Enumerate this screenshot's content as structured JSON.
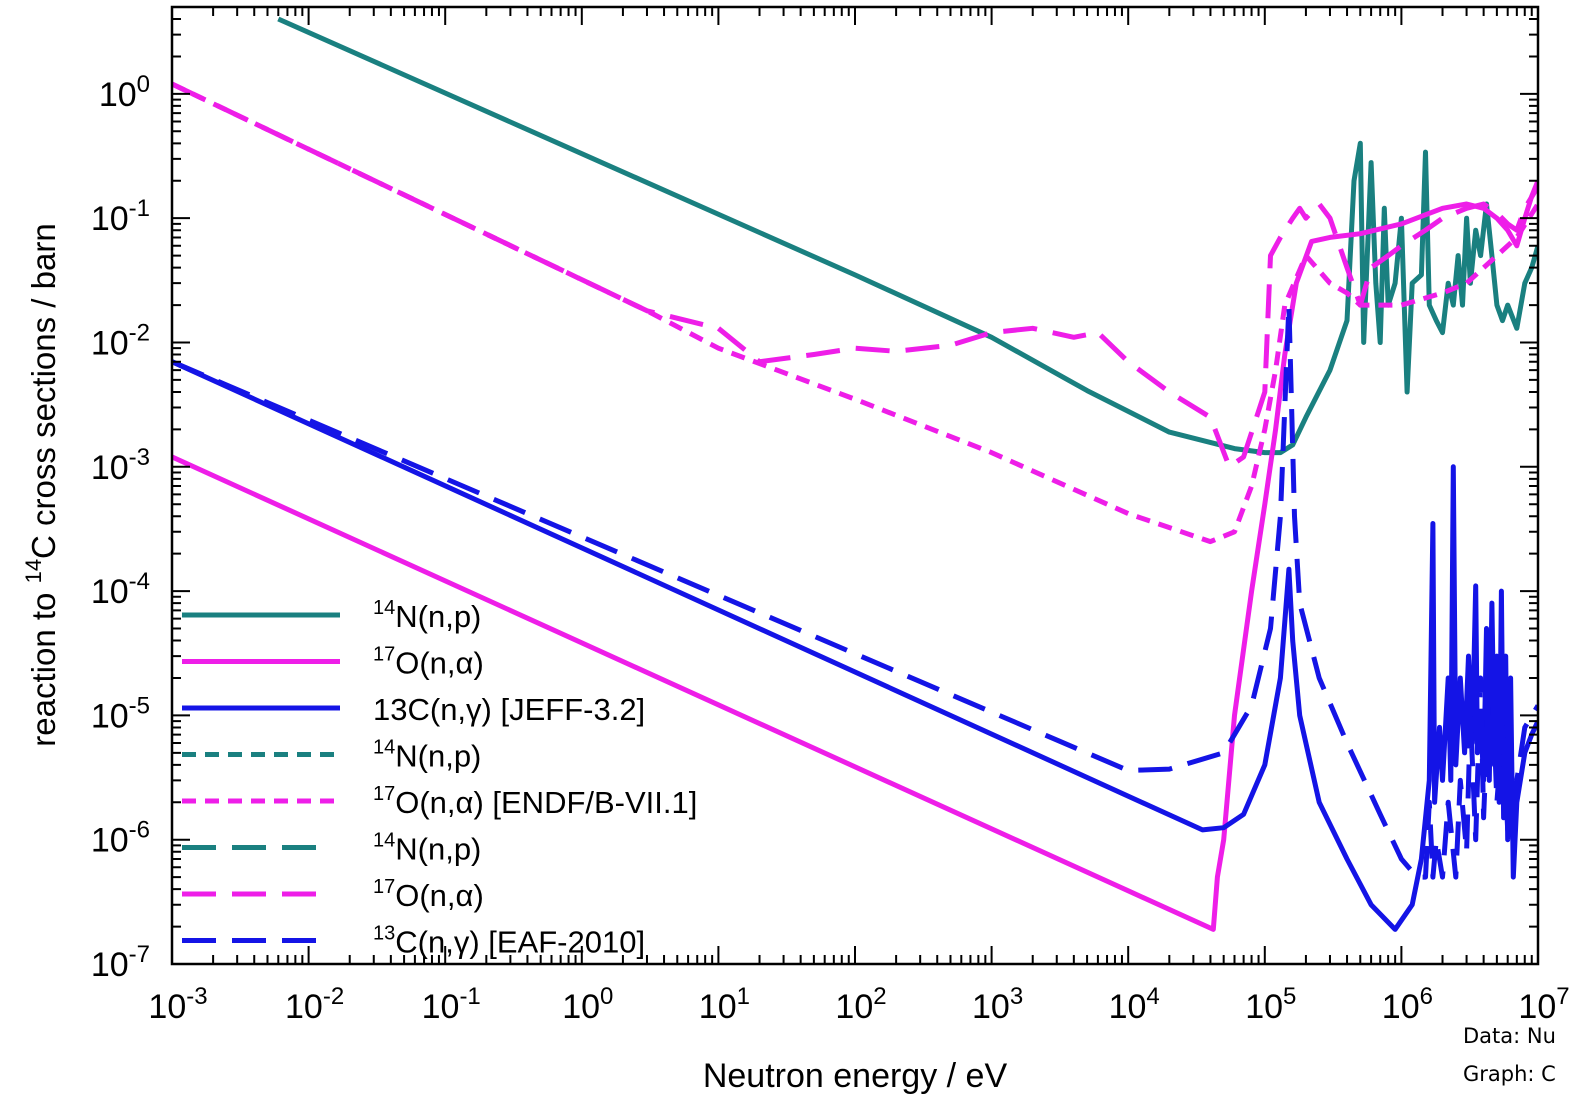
{
  "chart_data": {
    "type": "line",
    "xlabel": "Neutron energy / eV",
    "ylabel_parts": [
      "reaction to ",
      "14",
      "C cross sections / barn"
    ],
    "xscale": "log",
    "yscale": "log",
    "xlim": [
      0.001,
      10000000
    ],
    "ylim": [
      1e-07,
      5
    ],
    "x_ticks": [
      {
        "base": "10",
        "exp": "-3"
      },
      {
        "base": "10",
        "exp": "-2"
      },
      {
        "base": "10",
        "exp": "-1"
      },
      {
        "base": "10",
        "exp": "0"
      },
      {
        "base": "10",
        "exp": "1"
      },
      {
        "base": "10",
        "exp": "2"
      },
      {
        "base": "10",
        "exp": "3"
      },
      {
        "base": "10",
        "exp": "4"
      },
      {
        "base": "10",
        "exp": "5"
      },
      {
        "base": "10",
        "exp": "6"
      },
      {
        "base": "10",
        "exp": "7"
      }
    ],
    "y_ticks": [
      {
        "base": "10",
        "exp": "-7"
      },
      {
        "base": "10",
        "exp": "-6"
      },
      {
        "base": "10",
        "exp": "-5"
      },
      {
        "base": "10",
        "exp": "-4"
      },
      {
        "base": "10",
        "exp": "-3"
      },
      {
        "base": "10",
        "exp": "-2"
      },
      {
        "base": "10",
        "exp": "-1"
      },
      {
        "base": "10",
        "exp": "0"
      }
    ],
    "grid": false,
    "legend_position": "bottom-left",
    "series": [
      {
        "legend": [
          {
            "t": "14",
            "sup": true
          },
          {
            "t": "N(n,p)"
          }
        ],
        "color": "#1a8080",
        "dash": "solid",
        "points": [
          [
            0.006,
            4.0
          ],
          [
            100,
            0.035
          ],
          [
            1000,
            0.011
          ],
          [
            5000,
            0.0041
          ],
          [
            20000,
            0.0019
          ],
          [
            60000,
            0.0014
          ],
          [
            100000,
            0.0013
          ],
          [
            130000,
            0.0013
          ],
          [
            160000,
            0.0015
          ],
          [
            200000,
            0.0025
          ],
          [
            300000,
            0.006
          ],
          [
            400000,
            0.015
          ],
          [
            450000,
            0.2
          ],
          [
            500000,
            0.4
          ],
          [
            530000,
            0.01
          ],
          [
            600000,
            0.28
          ],
          [
            650000,
            0.03
          ],
          [
            700000,
            0.01
          ],
          [
            750000,
            0.12
          ],
          [
            800000,
            0.02
          ],
          [
            900000,
            0.03
          ],
          [
            1000000,
            0.1
          ],
          [
            1100000,
            0.004
          ],
          [
            1200000,
            0.03
          ],
          [
            1400000,
            0.035
          ],
          [
            1500000,
            0.34
          ],
          [
            1600000,
            0.02
          ],
          [
            1800000,
            0.015
          ],
          [
            2000000,
            0.012
          ],
          [
            2200000,
            0.03
          ],
          [
            2400000,
            0.02
          ],
          [
            2600000,
            0.05
          ],
          [
            2800000,
            0.02
          ],
          [
            3000000,
            0.1
          ],
          [
            3200000,
            0.03
          ],
          [
            3500000,
            0.08
          ],
          [
            3800000,
            0.05
          ],
          [
            4200000,
            0.13
          ],
          [
            4600000,
            0.05
          ],
          [
            5000000,
            0.02
          ],
          [
            5500000,
            0.015
          ],
          [
            6000000,
            0.02
          ],
          [
            7000000,
            0.013
          ],
          [
            8000000,
            0.03
          ],
          [
            9000000,
            0.04
          ],
          [
            10000000,
            0.06
          ]
        ]
      },
      {
        "legend": [
          {
            "t": "17",
            "sup": true
          },
          {
            "t": "O(n,α)"
          }
        ],
        "color": "#ee1ee8",
        "dash": "solid",
        "points": [
          [
            0.001,
            0.0012
          ],
          [
            42000,
            1.9e-07
          ],
          [
            45000,
            5e-07
          ],
          [
            50000,
            1e-06
          ],
          [
            60000,
            1e-05
          ],
          [
            80000,
            0.0001
          ],
          [
            100000,
            0.0005
          ],
          [
            120000,
            0.002
          ],
          [
            140000,
            0.008
          ],
          [
            170000,
            0.03
          ],
          [
            220000,
            0.065
          ],
          [
            300000,
            0.07
          ],
          [
            500000,
            0.075
          ],
          [
            1000000,
            0.09
          ],
          [
            2000000,
            0.12
          ],
          [
            3000000,
            0.13
          ],
          [
            4000000,
            0.12
          ],
          [
            5000000,
            0.1
          ],
          [
            6000000,
            0.08
          ],
          [
            7000000,
            0.06
          ],
          [
            8000000,
            0.1
          ],
          [
            9000000,
            0.15
          ],
          [
            10000000,
            0.2
          ]
        ]
      },
      {
        "legend": [
          {
            "t": "13C(n,"
          },
          {
            "t": "γ",
            "greek": true
          },
          {
            "t": ") [JEFF-3.2]"
          }
        ],
        "color": "#1414e6",
        "dash": "solid",
        "points": [
          [
            0.001,
            0.007
          ],
          [
            35000,
            1.2e-06
          ],
          [
            50000,
            1.25e-06
          ],
          [
            70000,
            1.6e-06
          ],
          [
            100000,
            4e-06
          ],
          [
            130000,
            2e-05
          ],
          [
            150000,
            0.00015
          ],
          [
            160000,
            4e-05
          ],
          [
            180000,
            1e-05
          ],
          [
            250000,
            2e-06
          ],
          [
            400000,
            7e-07
          ],
          [
            600000,
            3e-07
          ],
          [
            900000,
            1.9e-07
          ],
          [
            1200000,
            3e-07
          ],
          [
            1400000,
            7e-07
          ],
          [
            1600000,
            3e-06
          ],
          [
            1700000,
            0.00035
          ],
          [
            1750000,
            2e-06
          ],
          [
            1900000,
            8e-06
          ],
          [
            2000000,
            3e-06
          ],
          [
            2200000,
            2e-05
          ],
          [
            2300000,
            3e-06
          ],
          [
            2400000,
            0.001
          ],
          [
            2500000,
            4e-06
          ],
          [
            2700000,
            2e-05
          ],
          [
            2900000,
            5e-06
          ],
          [
            3100000,
            3e-05
          ],
          [
            3300000,
            6e-06
          ],
          [
            3500000,
            0.00011
          ],
          [
            3600000,
            5e-06
          ],
          [
            3800000,
            1e-05
          ],
          [
            4000000,
            3e-06
          ],
          [
            4200000,
            5e-05
          ],
          [
            4400000,
            3e-06
          ],
          [
            4600000,
            8e-05
          ],
          [
            4800000,
            4e-06
          ],
          [
            5000000,
            3e-05
          ],
          [
            5200000,
            2e-06
          ],
          [
            5400000,
            0.0001
          ],
          [
            5600000,
            1.5e-06
          ],
          [
            5800000,
            3e-05
          ],
          [
            6000000,
            1e-06
          ],
          [
            6300000,
            2e-05
          ],
          [
            6600000,
            5e-07
          ],
          [
            7000000,
            2e-06
          ],
          [
            8000000,
            5e-06
          ],
          [
            9000000,
            7e-06
          ],
          [
            10000000,
            9e-06
          ]
        ]
      },
      {
        "legend": [
          {
            "t": "14",
            "sup": true
          },
          {
            "t": "N(n,p)"
          }
        ],
        "color": "#1a8080",
        "dash": "short",
        "points": []
      },
      {
        "legend": [
          {
            "t": "17",
            "sup": true
          },
          {
            "t": "O(n,α) [ENDF/B-VII.1]"
          }
        ],
        "color": "#ee1ee8",
        "dash": "short",
        "points": [
          [
            0.001,
            1.2
          ],
          [
            3,
            0.018
          ],
          [
            10,
            0.009
          ],
          [
            100,
            0.0035
          ],
          [
            1000,
            0.0013
          ],
          [
            10000,
            0.00042
          ],
          [
            40000,
            0.00025
          ],
          [
            60000,
            0.0003
          ],
          [
            80000,
            0.0007
          ],
          [
            100000,
            0.002
          ],
          [
            120000,
            0.006
          ],
          [
            140000,
            0.02
          ],
          [
            200000,
            0.05
          ],
          [
            300000,
            0.03
          ],
          [
            400000,
            0.025
          ],
          [
            500000,
            0.02
          ],
          [
            700000,
            0.02
          ],
          [
            1000000,
            0.02
          ],
          [
            2000000,
            0.025
          ],
          [
            3000000,
            0.03
          ],
          [
            5000000,
            0.05
          ],
          [
            7000000,
            0.07
          ],
          [
            10000000,
            0.13
          ]
        ]
      },
      {
        "legend": [
          {
            "t": "14",
            "sup": true
          },
          {
            "t": "N(n,p)"
          }
        ],
        "color": "#1a8080",
        "dash": "long",
        "points": []
      },
      {
        "legend": [
          {
            "t": "17",
            "sup": true
          },
          {
            "t": "O(n,α)"
          }
        ],
        "color": "#ee1ee8",
        "dash": "long",
        "points": [
          [
            0.001,
            1.2
          ],
          [
            3,
            0.018
          ],
          [
            10,
            0.013
          ],
          [
            20,
            0.007
          ],
          [
            50,
            0.008
          ],
          [
            100,
            0.009
          ],
          [
            200,
            0.0085
          ],
          [
            500,
            0.0095
          ],
          [
            1000,
            0.012
          ],
          [
            2000,
            0.013
          ],
          [
            4000,
            0.011
          ],
          [
            6000,
            0.012
          ],
          [
            10000,
            0.007
          ],
          [
            20000,
            0.004
          ],
          [
            40000,
            0.0025
          ],
          [
            55000,
            0.001
          ],
          [
            70000,
            0.0012
          ],
          [
            100000,
            0.004
          ],
          [
            110000,
            0.05
          ],
          [
            130000,
            0.07
          ],
          [
            160000,
            0.1
          ],
          [
            180000,
            0.12
          ],
          [
            200000,
            0.1
          ],
          [
            250000,
            0.13
          ],
          [
            300000,
            0.1
          ],
          [
            400000,
            0.04
          ],
          [
            500000,
            0.02
          ],
          [
            600000,
            0.04
          ],
          [
            800000,
            0.05
          ],
          [
            1000000,
            0.06
          ],
          [
            1500000,
            0.08
          ],
          [
            2000000,
            0.1
          ],
          [
            3000000,
            0.12
          ],
          [
            4000000,
            0.13
          ],
          [
            5000000,
            0.11
          ],
          [
            6000000,
            0.09
          ],
          [
            7000000,
            0.08
          ],
          [
            8000000,
            0.12
          ],
          [
            10000000,
            0.18
          ]
        ]
      },
      {
        "legend": [
          {
            "t": "13",
            "sup": true
          },
          {
            "t": "C(n,"
          },
          {
            "t": "γ",
            "greek": true
          },
          {
            "t": ") [EAF-2010]"
          }
        ],
        "color": "#1414e6",
        "dash": "long",
        "points": [
          [
            0.001,
            0.007
          ],
          [
            10000,
            3.6e-06
          ],
          [
            20000,
            3.7e-06
          ],
          [
            50000,
            5e-06
          ],
          [
            80000,
            1.2e-05
          ],
          [
            110000,
            5e-05
          ],
          [
            130000,
            0.0004
          ],
          [
            150000,
            0.02
          ],
          [
            165000,
            0.0004
          ],
          [
            180000,
            8e-05
          ],
          [
            250000,
            2e-05
          ],
          [
            400000,
            6e-06
          ],
          [
            700000,
            1.6e-06
          ],
          [
            1000000,
            7e-07
          ],
          [
            1300000,
            5e-07
          ],
          [
            1500000,
            5e-07
          ],
          [
            1600000,
            2e-06
          ],
          [
            1700000,
            5e-07
          ],
          [
            1800000,
            1e-06
          ],
          [
            2000000,
            5e-07
          ],
          [
            2200000,
            2e-06
          ],
          [
            2500000,
            5e-07
          ],
          [
            2700000,
            3e-06
          ],
          [
            3000000,
            8e-07
          ],
          [
            3200000,
            1e-05
          ],
          [
            3500000,
            1e-06
          ],
          [
            3800000,
            2e-05
          ],
          [
            4000000,
            1.5e-06
          ],
          [
            4500000,
            4e-05
          ],
          [
            5000000,
            2e-06
          ],
          [
            5500000,
            8e-06
          ],
          [
            6000000,
            1.2e-06
          ],
          [
            7000000,
            3e-06
          ],
          [
            8000000,
            8e-06
          ],
          [
            10000000,
            1.2e-05
          ]
        ]
      }
    ]
  },
  "credits": {
    "data": "Data: Nu",
    "graph": "Graph: C"
  }
}
